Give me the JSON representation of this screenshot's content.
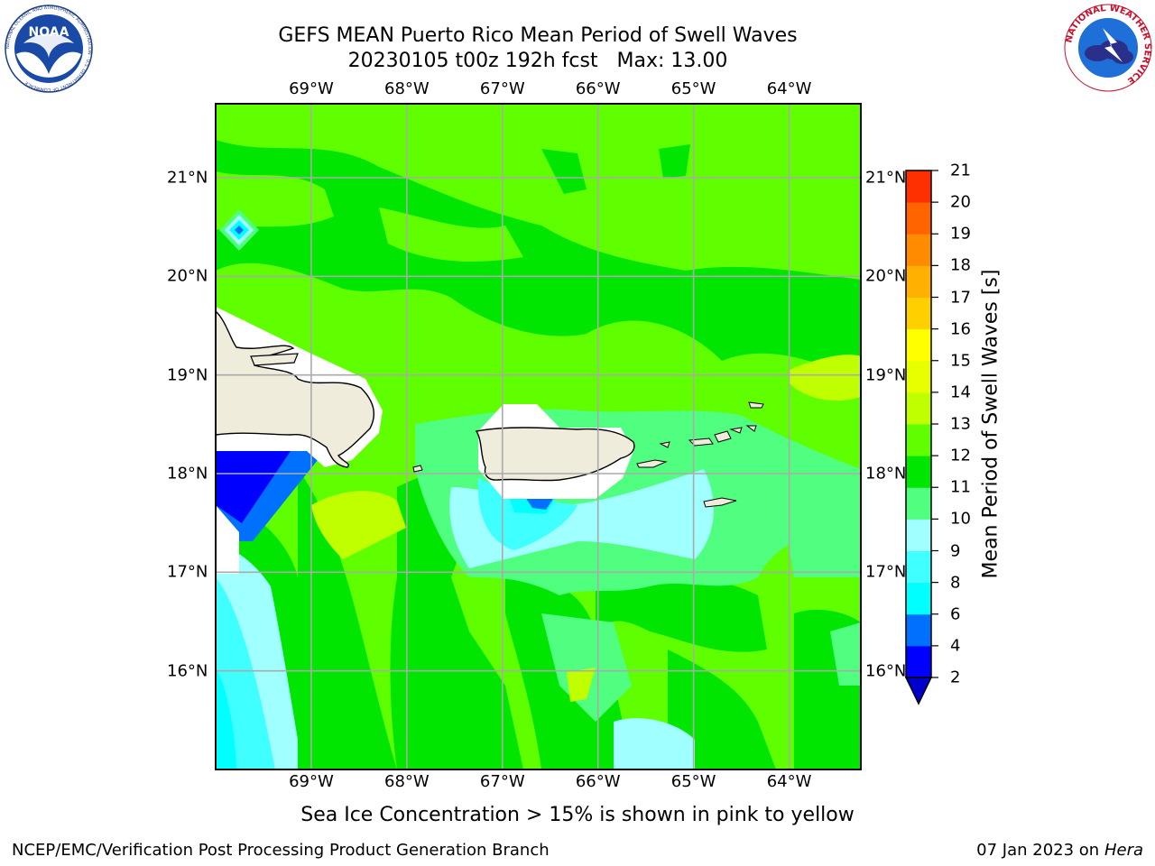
{
  "title": {
    "line1": "GEFS MEAN Puerto Rico Mean Period of Swell Waves",
    "line2": "20230105 t00z 192h fcst   Max: 13.00"
  },
  "logos": {
    "noaa_text": "NOAA",
    "noaa_ring": "NATIONAL OCEANIC AND ATMOSPHERIC ADMINISTRATION · U.S. DEPARTMENT OF COMMERCE",
    "nws_ring": "NATIONAL WEATHER SERVICE"
  },
  "map": {
    "lon_labels": [
      "69°W",
      "68°W",
      "67°W",
      "66°W",
      "65°W",
      "64°W"
    ],
    "lon_values": [
      -69,
      -68,
      -67,
      -66,
      -65,
      -64
    ],
    "lat_labels": [
      "21°N",
      "20°N",
      "19°N",
      "18°N",
      "17°N",
      "16°N"
    ],
    "lat_values": [
      21,
      20,
      19,
      18,
      17,
      16
    ],
    "lon_range": [
      -70.0,
      -63.25
    ],
    "lat_range": [
      15.0,
      21.75
    ],
    "land_color": "#efecdc",
    "grid": true
  },
  "colorbar": {
    "label": "Mean Period of Swell Waves [s]",
    "ticks": [
      "2",
      "4",
      "6",
      "8",
      "9",
      "10",
      "11",
      "12",
      "13",
      "14",
      "15",
      "16",
      "17",
      "18",
      "19",
      "20",
      "21"
    ],
    "colors": [
      "#0000ff",
      "#0070ff",
      "#00ffff",
      "#40ffff",
      "#a0ffff",
      "#50ff80",
      "#00e600",
      "#60ff00",
      "#c0ff00",
      "#e8ff00",
      "#ffff00",
      "#ffd000",
      "#ffb000",
      "#ff8c00",
      "#ff6400",
      "#ff3000"
    ],
    "under_color": "#0000cc"
  },
  "note": "Sea Ice Concentration > 15% is shown in pink to yellow",
  "footer": {
    "left": "NCEP/EMC/Verification Post Processing Product Generation Branch",
    "date": "07 Jan 2023 on ",
    "host": "Hera"
  }
}
